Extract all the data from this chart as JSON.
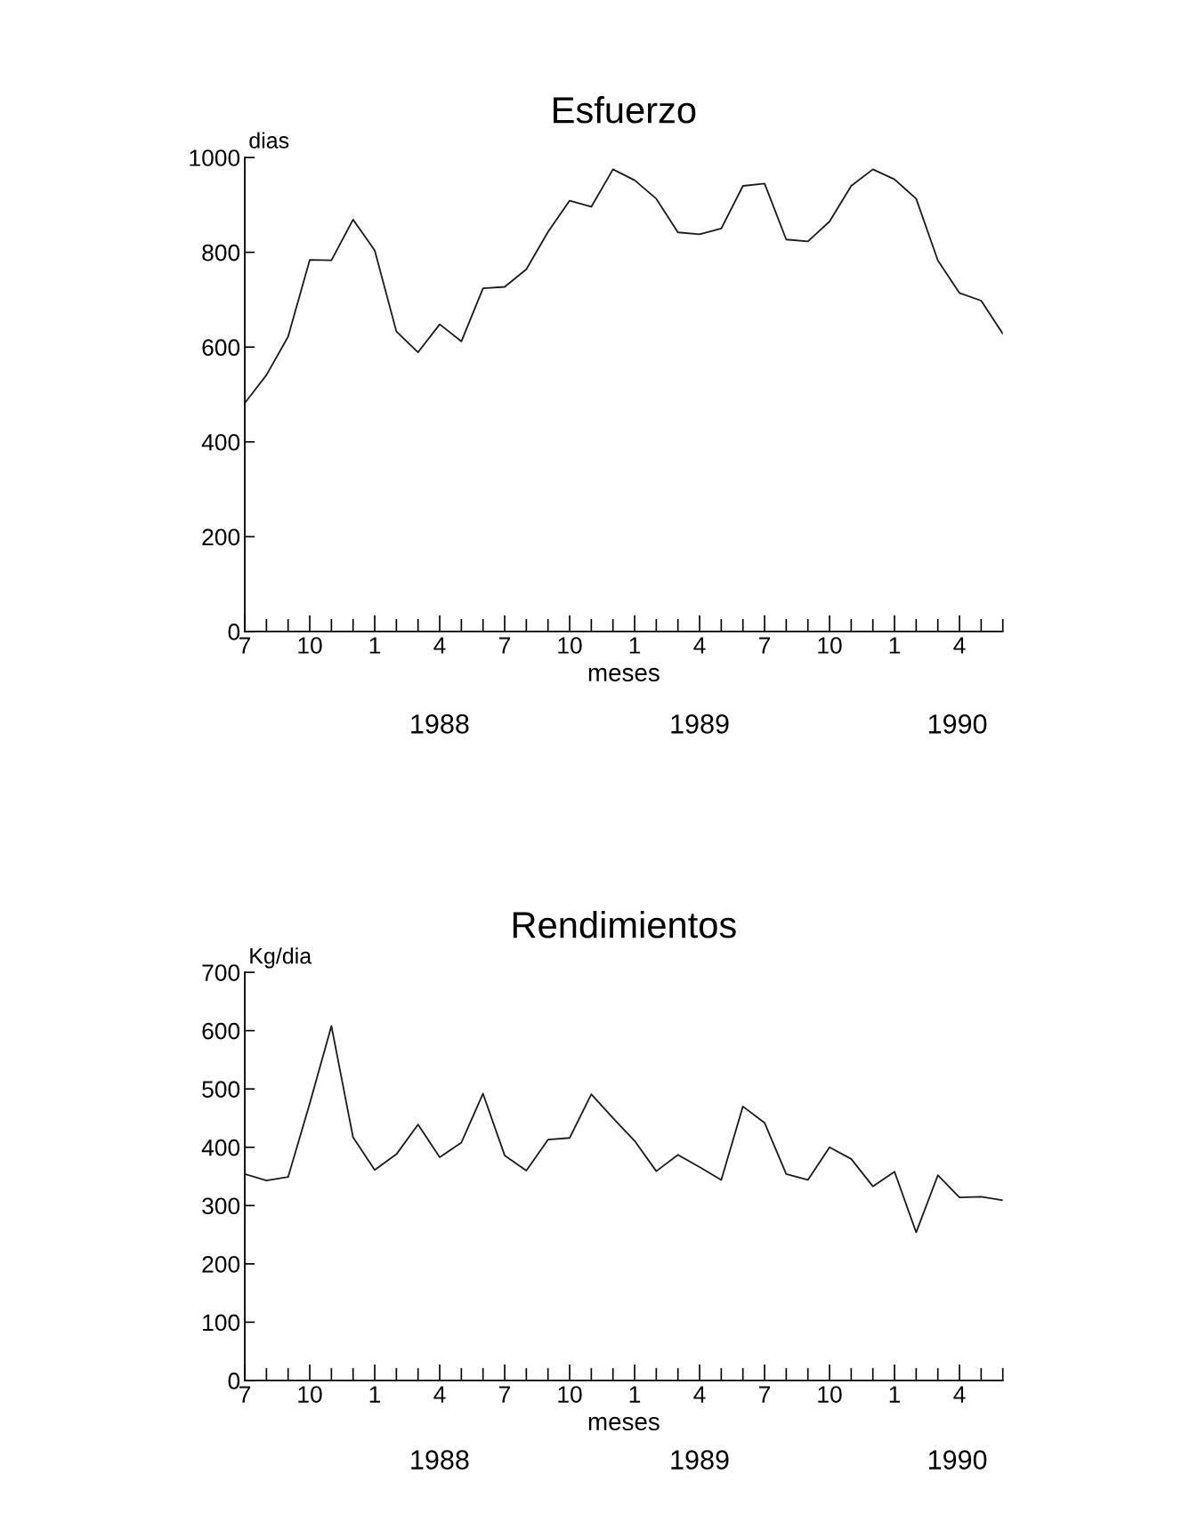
{
  "chart_data": [
    {
      "type": "line",
      "title": "Esfuerzo",
      "xlabel": "meses",
      "ylabel": "dias",
      "categories": [
        "7",
        null,
        null,
        "10",
        null,
        null,
        "1",
        null,
        null,
        "4",
        null,
        null,
        "7",
        null,
        null,
        "10",
        null,
        null,
        "1",
        null,
        null,
        "4",
        null,
        null,
        "7",
        null,
        null,
        "10",
        null,
        null,
        "1",
        null,
        null,
        "4",
        null,
        null
      ],
      "series": [
        {
          "color": "#1a1a1a",
          "values": [
            482,
            541,
            622,
            784,
            783,
            869,
            804,
            633,
            589,
            648,
            612,
            724,
            727,
            764,
            843,
            909,
            896,
            975,
            952,
            913,
            842,
            838,
            850,
            940,
            945,
            827,
            823,
            865,
            940,
            975,
            954,
            913,
            783,
            714,
            698,
            628
          ]
        }
      ],
      "annotations": [
        "1988",
        "1989",
        "1990"
      ],
      "ylim": [
        0,
        1000
      ],
      "yticks": [
        0,
        200,
        400,
        600,
        800,
        1000
      ],
      "grid": false,
      "marker": "none",
      "line_style": "solid"
    },
    {
      "type": "line",
      "title": "Rendimientos",
      "xlabel": "meses",
      "ylabel": "Kg/dia",
      "categories": [
        "7",
        null,
        null,
        "10",
        null,
        null,
        "1",
        null,
        null,
        "4",
        null,
        null,
        "7",
        null,
        null,
        "10",
        null,
        null,
        "1",
        null,
        null,
        "4",
        null,
        null,
        "7",
        null,
        null,
        "10",
        null,
        null,
        "1",
        null,
        null,
        "4",
        null,
        null
      ],
      "series": [
        {
          "color": "#1a1a1a",
          "values": [
            354,
            343,
            349,
            475,
            608,
            417,
            361,
            388,
            439,
            383,
            408,
            492,
            386,
            360,
            413,
            416,
            491,
            450,
            411,
            359,
            387,
            366,
            344,
            470,
            442,
            354,
            344,
            400,
            380,
            333,
            358,
            254,
            352,
            314,
            315,
            309
          ]
        }
      ],
      "annotations": [
        "1988",
        "1989",
        "1990"
      ],
      "ylim": [
        0,
        700
      ],
      "yticks": [
        0,
        100,
        200,
        300,
        400,
        500,
        600,
        700
      ],
      "grid": false,
      "marker": "none",
      "line_style": "solid"
    }
  ]
}
